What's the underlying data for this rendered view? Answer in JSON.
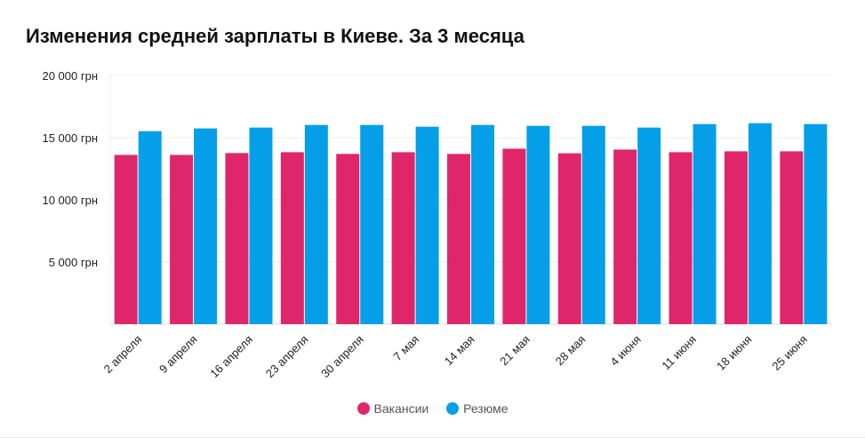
{
  "chart_data": {
    "type": "bar",
    "title": "Изменения средней зарплаты в Киеве. За 3 месяца",
    "categories": [
      "2 апреля",
      "9 апреля",
      "16 апреля",
      "23 апреля",
      "30 апреля",
      "7 мая",
      "14 мая",
      "21 мая",
      "28 мая",
      "4 июня",
      "11 июня",
      "18 июня",
      "25 июня"
    ],
    "series": [
      {
        "name": "Вакансии",
        "color": "#e0266a",
        "values": [
          13610,
          13610,
          13760,
          13830,
          13690,
          13830,
          13690,
          14110,
          13740,
          14040,
          13830,
          13900,
          13900
        ]
      },
      {
        "name": "Резюме",
        "color": "#049fe8",
        "values": [
          15520,
          15740,
          15810,
          16020,
          16020,
          15880,
          16020,
          15950,
          15950,
          15810,
          16090,
          16160,
          16090
        ]
      }
    ],
    "ylim": [
      0,
      20000
    ],
    "yticks": [
      {
        "value": 5000,
        "label": "5 000 грн"
      },
      {
        "value": 10000,
        "label": "10 000 грн"
      },
      {
        "value": 15000,
        "label": "15 000 грн"
      },
      {
        "value": 20000,
        "label": "20 000 грн"
      }
    ],
    "grid": true,
    "legend": "bottom"
  }
}
